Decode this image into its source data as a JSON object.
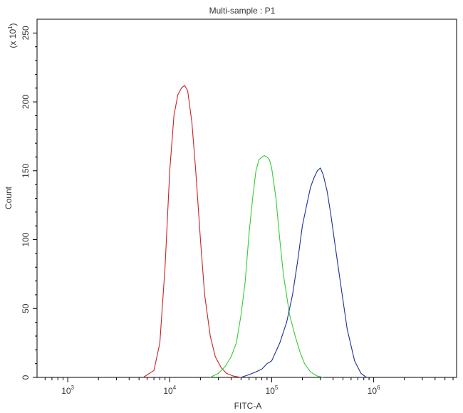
{
  "chart_data": {
    "type": "line",
    "title": "Multi-sample : P1",
    "xlabel": "FITC-A",
    "ylabel": "Count",
    "y_multiplier_label": "(x 10",
    "y_multiplier_exp": "1",
    "y_multiplier_close": ")",
    "x_scale": "log",
    "xlim": [
      500,
      6500000
    ],
    "ylim": [
      0,
      260
    ],
    "x_ticks": [
      {
        "base": "10",
        "exp": "3",
        "value": 1000
      },
      {
        "base": "10",
        "exp": "4",
        "value": 10000
      },
      {
        "base": "10",
        "exp": "5",
        "value": 100000
      },
      {
        "base": "10",
        "exp": "6",
        "value": 1000000
      }
    ],
    "y_ticks": [
      {
        "label": "0",
        "value": 0
      },
      {
        "label": "50",
        "value": 50
      },
      {
        "label": "100",
        "value": 100
      },
      {
        "label": "150",
        "value": 150
      },
      {
        "label": "200",
        "value": 200
      },
      {
        "label": "250",
        "value": 250
      }
    ],
    "grid": false,
    "legend": "none",
    "series": [
      {
        "color": "#cc2222",
        "x": [
          5500,
          7000,
          8000,
          9000,
          10000,
          11000,
          12000,
          13000,
          14000,
          15000,
          16500,
          18000,
          20000,
          22000,
          25000,
          28000,
          32000,
          36000,
          42000,
          50000
        ],
        "y": [
          0,
          5,
          25,
          80,
          150,
          190,
          205,
          210,
          212,
          208,
          185,
          150,
          100,
          60,
          30,
          15,
          7,
          3,
          1,
          0
        ]
      },
      {
        "color": "#33cc33",
        "x": [
          25000,
          30000,
          35000,
          40000,
          45000,
          50000,
          55000,
          60000,
          65000,
          70000,
          75000,
          80000,
          85000,
          90000,
          95000,
          100000,
          110000,
          120000,
          130000,
          150000,
          170000,
          190000,
          210000,
          240000,
          280000,
          320000
        ],
        "y": [
          0,
          3,
          8,
          15,
          25,
          45,
          70,
          105,
          130,
          150,
          158,
          160,
          161,
          160,
          158,
          152,
          130,
          100,
          75,
          45,
          30,
          18,
          10,
          4,
          1,
          0
        ]
      },
      {
        "color": "#1a2e9e",
        "x": [
          50000,
          60000,
          70000,
          80000,
          90000,
          100000,
          120000,
          140000,
          160000,
          180000,
          200000,
          220000,
          240000,
          260000,
          280000,
          300000,
          320000,
          350000,
          380000,
          420000,
          480000,
          550000,
          650000,
          750000,
          850000
        ],
        "y": [
          0,
          2,
          4,
          6,
          10,
          12,
          25,
          40,
          60,
          85,
          110,
          125,
          138,
          145,
          150,
          152,
          147,
          135,
          118,
          95,
          65,
          35,
          12,
          3,
          0
        ]
      }
    ]
  }
}
